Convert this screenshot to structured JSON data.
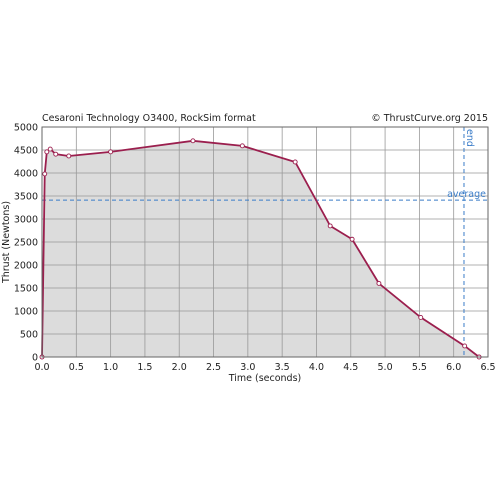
{
  "chart_data": {
    "type": "area",
    "title": "Cesaroni Technology O3400, RockSim format",
    "subtitle": "© ThrustCurve.org 2015",
    "x_label": "Time (seconds)",
    "y_label": "Thrust (Newtons)",
    "x": [
      0,
      0.04,
      0.07,
      0.12,
      0.2,
      0.39,
      1.0,
      2.2,
      2.92,
      3.69,
      4.2,
      4.52,
      4.91,
      5.52,
      6.16,
      6.37
    ],
    "series": [
      {
        "color": "#9b1f4e",
        "fill": "#dcdcdc",
        "values": [
          0,
          3980,
          4460,
          4520,
          4410,
          4370,
          4460,
          4700,
          4590,
          4240,
          2850,
          2560,
          1600,
          860,
          240,
          0
        ]
      }
    ],
    "xlim": [
      0,
      6.5
    ],
    "xticks": [
      {
        "value": 0,
        "label": "0.0"
      },
      0.5,
      {
        "value": 1,
        "label": "1.0"
      },
      1.5,
      {
        "value": 2,
        "label": "2.0"
      },
      2.5,
      {
        "value": 3,
        "label": "3.0"
      },
      3.5,
      {
        "value": 4,
        "label": "4.0"
      },
      4.5,
      {
        "value": 5,
        "label": "5.0"
      },
      5.5,
      {
        "value": 6,
        "label": "6.0"
      },
      6.5
    ],
    "ylim": [
      0,
      5000
    ],
    "yticks": [
      0,
      500,
      1000,
      1500,
      2000,
      2500,
      3000,
      3500,
      4000,
      4500,
      5000
    ],
    "grid": true,
    "reference_lines": [
      {
        "axis": "y",
        "value": 3410,
        "label": "average",
        "color": "#3a7cc8"
      },
      {
        "axis": "x",
        "value": 6.15,
        "label": "end",
        "color": "#3a7cc8"
      }
    ]
  }
}
